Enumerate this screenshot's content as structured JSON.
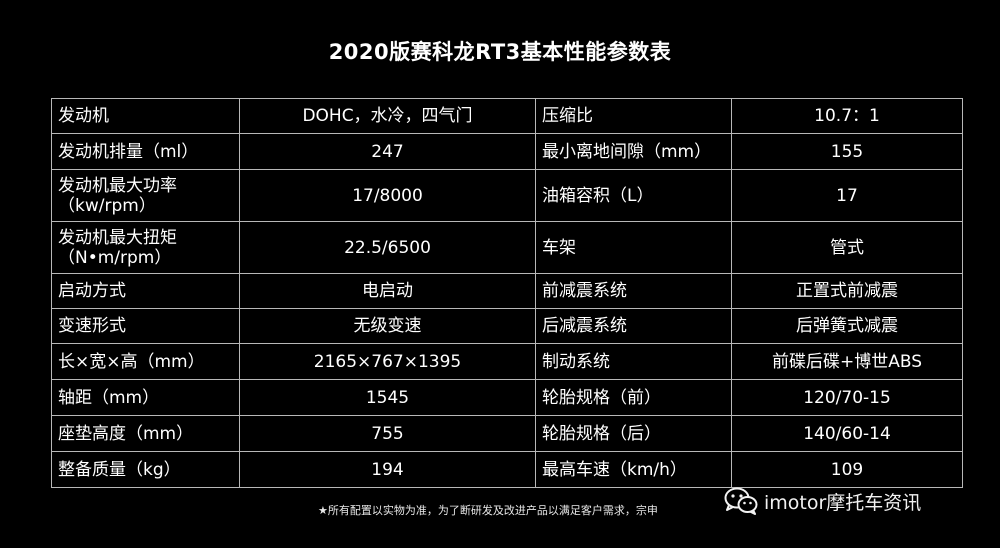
{
  "title": "2020版赛科龙RT3基本性能参数表",
  "rows": [
    {
      "l1": "发动机",
      "v1": "DOHC，水冷，四气门",
      "l2": "压缩比",
      "v2": "10.7：1"
    },
    {
      "l1": "发动机排量（ml）",
      "v1": "247",
      "l2": "最小离地间隙（mm）",
      "v2": "155"
    },
    {
      "l1a": "发动机最大功率",
      "l1b": "（kw/rpm）",
      "v1": "17/8000",
      "l2": "油箱容积（L）",
      "v2": "17"
    },
    {
      "l1a": "发动机最大扭矩",
      "l1b": "（N•m/rpm）",
      "v1": "22.5/6500",
      "l2": "车架",
      "v2": "管式"
    },
    {
      "l1": "启动方式",
      "v1": "电启动",
      "l2": "前减震系统",
      "v2": "正置式前减震"
    },
    {
      "l1": "变速形式",
      "v1": "无级变速",
      "l2": "后减震系统",
      "v2": "后弹簧式减震"
    },
    {
      "l1": "长×宽×高（mm）",
      "v1": "2165×767×1395",
      "l2": "制动系统",
      "v2": "前碟后碟+博世ABS"
    },
    {
      "l1": "轴距（mm）",
      "v1": "1545",
      "l2": "轮胎规格（前）",
      "v2": "120/70-15"
    },
    {
      "l1": "座垫高度（mm）",
      "v1": "755",
      "l2": "轮胎规格（后）",
      "v2": "140/60-14"
    },
    {
      "l1": "整备质量（kg）",
      "v1": "194",
      "l2": "最高车速（km/h）",
      "v2": "109"
    }
  ],
  "footnote": "★所有配置以实物为准，为了断研发及改进产品以满足客户需求，宗申",
  "watermark": {
    "text": "imotor摩托车资讯",
    "icon": "wechat-icon"
  },
  "colors": {
    "background": "#000000",
    "text": "#ffffff",
    "border": "#b8b8b8"
  }
}
